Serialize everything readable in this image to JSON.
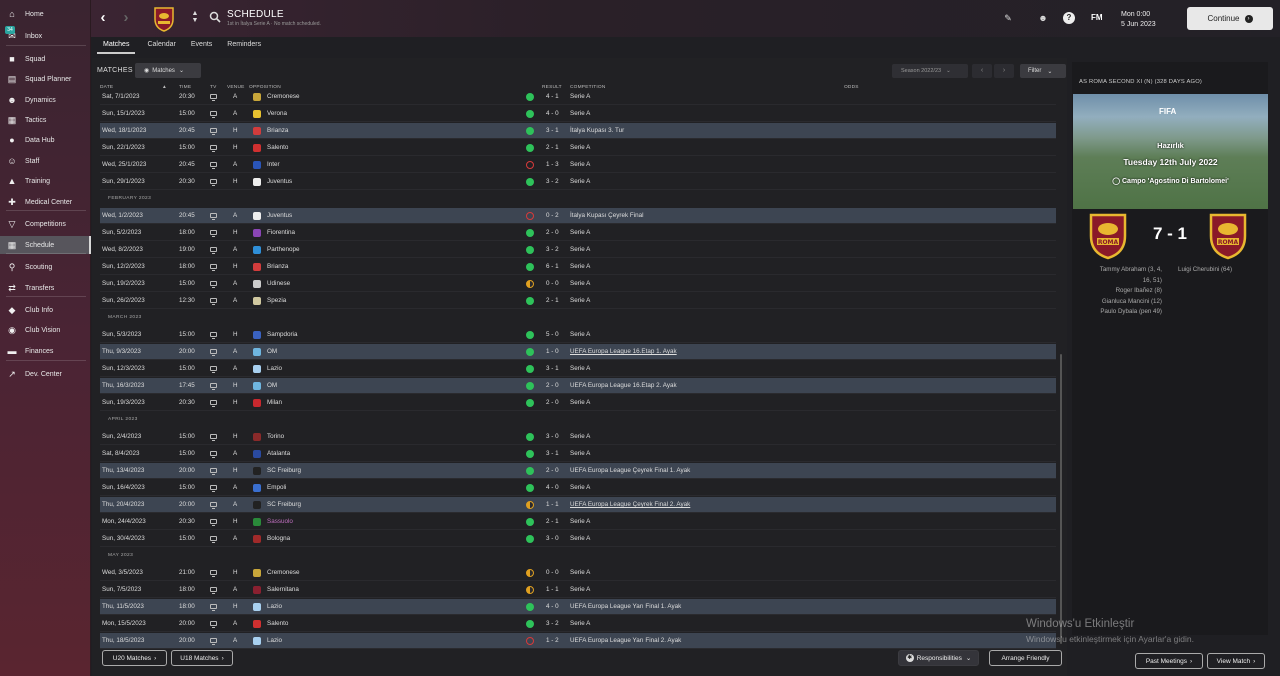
{
  "sidebar": {
    "items": [
      {
        "label": "Home",
        "icon": "home-icon"
      },
      {
        "label": "Inbox",
        "icon": "inbox-icon",
        "badge": "34"
      },
      {
        "label": "Squad",
        "icon": "shirt-icon"
      },
      {
        "label": "Squad Planner",
        "icon": "clipboard-icon"
      },
      {
        "label": "Dynamics",
        "icon": "people-icon"
      },
      {
        "label": "Tactics",
        "icon": "tactics-board-icon"
      },
      {
        "label": "Data Hub",
        "icon": "globe-icon"
      },
      {
        "label": "Staff",
        "icon": "staff-icon"
      },
      {
        "label": "Training",
        "icon": "cone-icon"
      },
      {
        "label": "Medical Center",
        "icon": "medical-cross-icon"
      },
      {
        "label": "Competitions",
        "icon": "trophy-icon"
      },
      {
        "label": "Schedule",
        "icon": "calendar-grid-icon"
      },
      {
        "label": "Scouting",
        "icon": "magnifier-icon"
      },
      {
        "label": "Transfers",
        "icon": "transfer-arrows-icon"
      },
      {
        "label": "Club Info",
        "icon": "shield-icon"
      },
      {
        "label": "Club Vision",
        "icon": "eye-icon"
      },
      {
        "label": "Finances",
        "icon": "banknote-icon"
      },
      {
        "label": "Dev. Center",
        "icon": "trend-line-icon"
      }
    ]
  },
  "header": {
    "title": "SCHEDULE",
    "subtitle": "1st in İtalya Serie A · No match scheduled.",
    "date_line1": "Mon 0:00",
    "date_line2": "5 Jun 2023",
    "fm_logo": "FM",
    "continue_label": "Continue"
  },
  "tabs": [
    {
      "label": "Matches",
      "active": true
    },
    {
      "label": "Calendar"
    },
    {
      "label": "Events"
    },
    {
      "label": "Reminders"
    }
  ],
  "toolbar": {
    "matches_label": "MATCHES",
    "matches_dropdown": "Matches",
    "season": "Season 2022/23",
    "filter": "Filter"
  },
  "columns": {
    "date": "DATE",
    "time": "TIME",
    "tv": "TV",
    "venue": "VENUE",
    "opposition": "OPPOSITION",
    "result": "RESULT",
    "competition": "COMPETITION",
    "odds": "ODDS"
  },
  "rows": [
    {
      "type": "match",
      "date": "Sat, 7/1/2023",
      "time": "20:30",
      "venue": "A",
      "opp": "Cremonese",
      "crest": "#c8a63a",
      "res": "win",
      "score": "4 - 1",
      "comp": "Serie A"
    },
    {
      "type": "match",
      "date": "Sun, 15/1/2023",
      "time": "15:00",
      "venue": "A",
      "opp": "Verona",
      "crest": "#e8c230",
      "res": "win",
      "score": "4 - 0",
      "comp": "Serie A"
    },
    {
      "type": "match",
      "date": "Wed, 18/1/2023",
      "time": "20:45",
      "venue": "H",
      "opp": "Brianza",
      "crest": "#d23c3c",
      "res": "win",
      "score": "3 - 1",
      "comp": "İtalya Kupası 3. Tur",
      "hl": true
    },
    {
      "type": "match",
      "date": "Sun, 22/1/2023",
      "time": "15:00",
      "venue": "H",
      "opp": "Salento",
      "crest": "#d03030",
      "res": "win",
      "score": "2 - 1",
      "comp": "Serie A"
    },
    {
      "type": "match",
      "date": "Wed, 25/1/2023",
      "time": "20:45",
      "venue": "A",
      "opp": "Inter",
      "crest": "#2a55b8",
      "res": "loss",
      "score": "1 - 3",
      "comp": "Serie A"
    },
    {
      "type": "match",
      "date": "Sun, 29/1/2023",
      "time": "20:30",
      "venue": "H",
      "opp": "Juventus",
      "crest": "#eeeeee",
      "res": "win",
      "score": "3 - 2",
      "comp": "Serie A"
    },
    {
      "type": "section",
      "label": "FEBRUARY 2023"
    },
    {
      "type": "match",
      "date": "Wed, 1/2/2023",
      "time": "20:45",
      "venue": "A",
      "opp": "Juventus",
      "crest": "#eeeeee",
      "res": "loss",
      "score": "0 - 2",
      "comp": "İtalya Kupası Çeyrek Final",
      "hl": true
    },
    {
      "type": "match",
      "date": "Sun, 5/2/2023",
      "time": "18:00",
      "venue": "H",
      "opp": "Fiorentina",
      "crest": "#8a45b5",
      "res": "win",
      "score": "2 - 0",
      "comp": "Serie A"
    },
    {
      "type": "match",
      "date": "Wed, 8/2/2023",
      "time": "19:00",
      "venue": "A",
      "opp": "Parthenope",
      "crest": "#2f8fd8",
      "res": "win",
      "score": "3 - 2",
      "comp": "Serie A"
    },
    {
      "type": "match",
      "date": "Sun, 12/2/2023",
      "time": "18:00",
      "venue": "H",
      "opp": "Brianza",
      "crest": "#d23c3c",
      "res": "win",
      "score": "6 - 1",
      "comp": "Serie A"
    },
    {
      "type": "match",
      "date": "Sun, 19/2/2023",
      "time": "15:00",
      "venue": "A",
      "opp": "Udinese",
      "crest": "#cccccc",
      "res": "draw",
      "score": "0 - 0",
      "comp": "Serie A"
    },
    {
      "type": "match",
      "date": "Sun, 26/2/2023",
      "time": "12:30",
      "venue": "A",
      "opp": "Spezia",
      "crest": "#d0c8a0",
      "res": "win",
      "score": "2 - 1",
      "comp": "Serie A"
    },
    {
      "type": "section",
      "label": "MARCH 2023"
    },
    {
      "type": "match",
      "date": "Sun, 5/3/2023",
      "time": "15:00",
      "venue": "H",
      "opp": "Sampdoria",
      "crest": "#3a62c0",
      "res": "win",
      "score": "5 - 0",
      "comp": "Serie A"
    },
    {
      "type": "match",
      "date": "Thu, 9/3/2023",
      "time": "20:00",
      "venue": "A",
      "opp": "OM",
      "crest": "#6fb6e0",
      "res": "win",
      "score": "1 - 0",
      "comp": "UEFA Europa League 16.Etap 1. Ayak",
      "hl": true,
      "link": true
    },
    {
      "type": "match",
      "date": "Sun, 12/3/2023",
      "time": "15:00",
      "venue": "A",
      "opp": "Lazio",
      "crest": "#a8d0f0",
      "res": "win",
      "score": "3 - 1",
      "comp": "Serie A"
    },
    {
      "type": "match",
      "date": "Thu, 16/3/2023",
      "time": "17:45",
      "venue": "H",
      "opp": "OM",
      "crest": "#6fb6e0",
      "res": "win",
      "score": "2 - 0",
      "comp": "UEFA Europa League 16.Etap 2. Ayak",
      "hl": true
    },
    {
      "type": "match",
      "date": "Sun, 19/3/2023",
      "time": "20:30",
      "venue": "H",
      "opp": "Milan",
      "crest": "#c8282e",
      "res": "win",
      "score": "2 - 0",
      "comp": "Serie A"
    },
    {
      "type": "section",
      "label": "APRIL 2023"
    },
    {
      "type": "match",
      "date": "Sun, 2/4/2023",
      "time": "15:00",
      "venue": "H",
      "opp": "Torino",
      "crest": "#8a2a2a",
      "res": "win",
      "score": "3 - 0",
      "comp": "Serie A"
    },
    {
      "type": "match",
      "date": "Sat, 8/4/2023",
      "time": "15:00",
      "venue": "A",
      "opp": "Atalanta",
      "crest": "#2a4aa0",
      "res": "win",
      "score": "3 - 1",
      "comp": "Serie A"
    },
    {
      "type": "match",
      "date": "Thu, 13/4/2023",
      "time": "20:00",
      "venue": "H",
      "opp": "SC Freiburg",
      "crest": "#222222",
      "res": "win",
      "score": "2 - 0",
      "comp": "UEFA Europa League Çeyrek Final 1. Ayak",
      "hl": true
    },
    {
      "type": "match",
      "date": "Sun, 16/4/2023",
      "time": "15:00",
      "venue": "A",
      "opp": "Empoli",
      "crest": "#3a6fd0",
      "res": "win",
      "score": "4 - 0",
      "comp": "Serie A"
    },
    {
      "type": "match",
      "date": "Thu, 20/4/2023",
      "time": "20:00",
      "venue": "A",
      "opp": "SC Freiburg",
      "crest": "#222222",
      "res": "draw",
      "score": "1 - 1",
      "comp": "UEFA Europa League Çeyrek Final 2. Ayak",
      "hl": true,
      "link": true
    },
    {
      "type": "match",
      "date": "Mon, 24/4/2023",
      "time": "20:30",
      "venue": "H",
      "opp": "Sassuolo",
      "crest": "#2a8a3a",
      "res": "win",
      "score": "2 - 1",
      "comp": "Serie A",
      "opp_color": "#c070c0"
    },
    {
      "type": "match",
      "date": "Sun, 30/4/2023",
      "time": "15:00",
      "venue": "A",
      "opp": "Bologna",
      "crest": "#a02a2a",
      "res": "win",
      "score": "3 - 0",
      "comp": "Serie A"
    },
    {
      "type": "section",
      "label": "MAY 2023"
    },
    {
      "type": "match",
      "date": "Wed, 3/5/2023",
      "time": "21:00",
      "venue": "H",
      "opp": "Cremonese",
      "crest": "#c8a63a",
      "res": "draw",
      "score": "0 - 0",
      "comp": "Serie A"
    },
    {
      "type": "match",
      "date": "Sun, 7/5/2023",
      "time": "18:00",
      "venue": "A",
      "opp": "Salernitana",
      "crest": "#8a2030",
      "res": "draw",
      "score": "1 - 1",
      "comp": "Serie A"
    },
    {
      "type": "match",
      "date": "Thu, 11/5/2023",
      "time": "18:00",
      "venue": "H",
      "opp": "Lazio",
      "crest": "#a8d0f0",
      "res": "win",
      "score": "4 - 0",
      "comp": "UEFA Europa League Yarı Final 1. Ayak",
      "hl": true
    },
    {
      "type": "match",
      "date": "Mon, 15/5/2023",
      "time": "20:00",
      "venue": "A",
      "opp": "Salento",
      "crest": "#d03030",
      "res": "win",
      "score": "3 - 2",
      "comp": "Serie A"
    },
    {
      "type": "match",
      "date": "Thu, 18/5/2023",
      "time": "20:00",
      "venue": "A",
      "opp": "Lazio",
      "crest": "#a8d0f0",
      "res": "loss",
      "score": "1 - 2",
      "comp": "UEFA Europa League Yarı Final 2. Ayak",
      "hl": true
    }
  ],
  "result_colors": {
    "win": "#2ec25a",
    "draw": "#e0a020",
    "loss": "#d83a3a"
  },
  "bottom": {
    "u20": "U20 Matches",
    "u18": "U18 Matches",
    "responsibilities": "Responsibilities",
    "arrange": "Arrange Friendly"
  },
  "right_panel": {
    "title": "AS ROMA SECOND XI (N) (328 DAYS AGO)",
    "img_fifa": "FIFA",
    "img_line1": "Hazırlık",
    "img_line2": "Tuesday 12th July 2022",
    "img_line3": "Campo 'Agostino Di Bartolomei'",
    "score": "7 - 1",
    "scorers_left": [
      "Tammy Abraham (3, 4,",
      "16, 51)",
      "Roger Ibañez (8)",
      "Gianluca Mancini (12)",
      "Paulo Dybala (pen 49)"
    ],
    "scorers_right": [
      "Luigi Cherubini (64)"
    ],
    "past_meetings": "Past Meetings",
    "view_match": "View Match"
  },
  "watermark": {
    "line1": "Windows'u Etkinleştir",
    "line2": "Windows'u etkinleştirmek için Ayarlar'a gidin."
  },
  "accent": "#3d4552"
}
